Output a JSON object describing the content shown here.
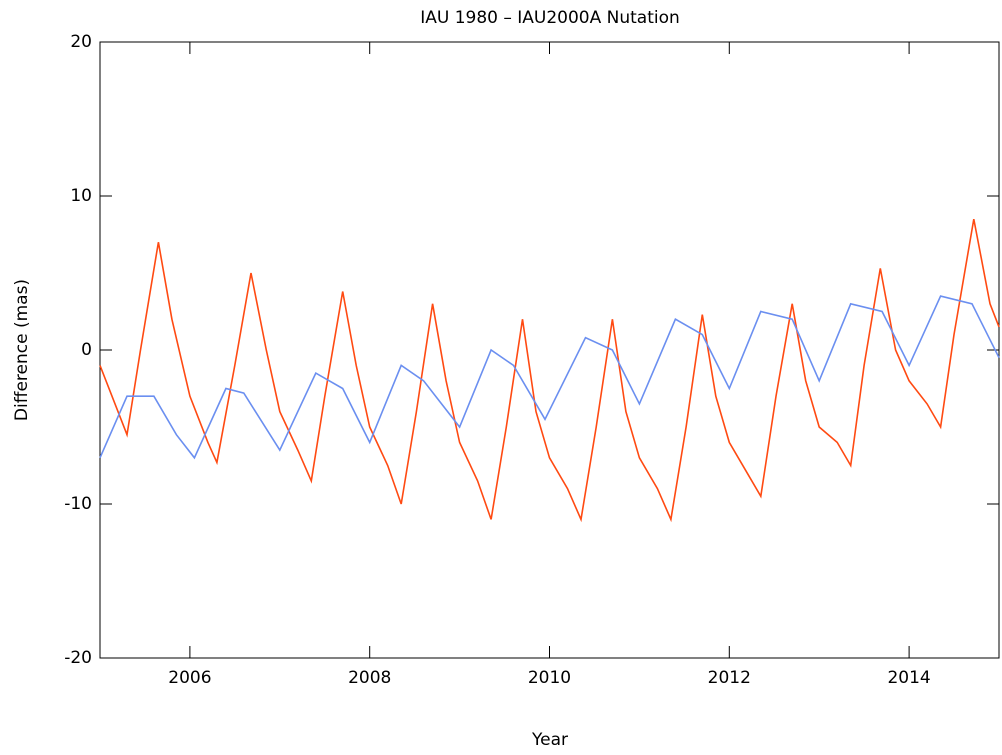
{
  "chart_data": {
    "type": "line",
    "title": "IAU 1980 – IAU2000A Nutation",
    "x_label": "Year",
    "y_label": "Difference (mas)",
    "xlim": [
      2005,
      2015
    ],
    "xticks": [
      2006,
      2008,
      2010,
      2012,
      2014
    ],
    "ylim": [
      -20,
      20
    ],
    "yticks": [
      -20,
      -10,
      0,
      10,
      20
    ],
    "grid": false,
    "series": [
      {
        "color": "#ff4a12",
        "x": [
          2005.0,
          2005.2,
          2005.3,
          2005.45,
          2005.65,
          2005.8,
          2006.0,
          2006.2,
          2006.3,
          2006.5,
          2006.68,
          2006.85,
          2007.0,
          2007.2,
          2007.35,
          2007.5,
          2007.7,
          2007.85,
          2008.0,
          2008.2,
          2008.35,
          2008.52,
          2008.7,
          2008.85,
          2009.0,
          2009.2,
          2009.35,
          2009.52,
          2009.7,
          2009.85,
          2010.0,
          2010.2,
          2010.35,
          2010.52,
          2010.7,
          2010.85,
          2011.0,
          2011.2,
          2011.35,
          2011.52,
          2011.7,
          2011.85,
          2012.0,
          2012.2,
          2012.35,
          2012.52,
          2012.7,
          2012.85,
          2013.0,
          2013.2,
          2013.35,
          2013.5,
          2013.68,
          2013.85,
          2014.0,
          2014.2,
          2014.35,
          2014.5,
          2014.72,
          2014.9,
          2015.0
        ],
        "values": [
          -1,
          -4,
          -5.5,
          0,
          7,
          2,
          -3,
          -6,
          -7.3,
          -1,
          5,
          0,
          -4,
          -6.5,
          -8.5,
          -3,
          3.8,
          -1,
          -5,
          -7.5,
          -10,
          -4,
          3,
          -2,
          -6,
          -8.5,
          -11,
          -5,
          2,
          -4,
          -7,
          -9,
          -11,
          -5,
          2,
          -4,
          -7,
          -9,
          -11,
          -5,
          2.3,
          -3,
          -6,
          -8,
          -9.5,
          -3,
          3,
          -2,
          -5,
          -6,
          -7.5,
          -1,
          5.3,
          0,
          -2,
          -3.5,
          -5,
          1,
          8.5,
          3,
          1.5
        ]
      },
      {
        "color": "#6b8ff0",
        "x": [
          2005.0,
          2005.3,
          2005.6,
          2005.85,
          2006.05,
          2006.4,
          2006.6,
          2007.0,
          2007.4,
          2007.7,
          2008.0,
          2008.35,
          2008.6,
          2009.0,
          2009.35,
          2009.6,
          2009.95,
          2010.4,
          2010.7,
          2011.0,
          2011.4,
          2011.7,
          2012.0,
          2012.35,
          2012.7,
          2013.0,
          2013.35,
          2013.7,
          2014.0,
          2014.35,
          2014.7,
          2015.0
        ],
        "values": [
          -7,
          -3,
          -3,
          -5.5,
          -7,
          -2.5,
          -2.8,
          -6.5,
          -1.5,
          -2.5,
          -6,
          -1,
          -2,
          -5,
          0,
          -1,
          -4.5,
          0.8,
          0,
          -3.5,
          2,
          1,
          -2.5,
          2.5,
          2,
          -2,
          3,
          2.5,
          -1,
          3.5,
          3,
          -0.5
        ]
      }
    ]
  }
}
